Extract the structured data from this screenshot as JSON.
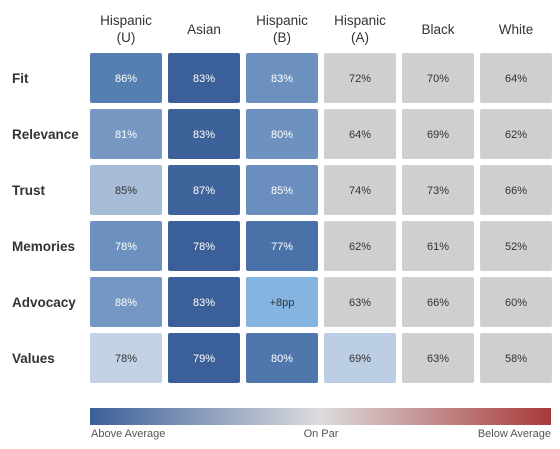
{
  "chart_data": {
    "type": "heatmap",
    "columns": [
      [
        "Hispanic",
        "(U)"
      ],
      [
        "Asian"
      ],
      [
        "Hispanic",
        "(B)"
      ],
      [
        "Hispanic",
        "(A)"
      ],
      [
        "Black"
      ],
      [
        "White"
      ]
    ],
    "rows": [
      {
        "label": "Fit",
        "cells": [
          {
            "text": "86%",
            "color": "#567fb1",
            "text_color": "#ffffff"
          },
          {
            "text": "83%",
            "color": "#3b5f98",
            "text_color": "#ffffff"
          },
          {
            "text": "83%",
            "color": "#6c91bf",
            "text_color": "#ffffff"
          },
          {
            "text": "72%",
            "color": "#cfcfcf",
            "text_color": "#333333"
          },
          {
            "text": "70%",
            "color": "#cfcfcf",
            "text_color": "#333333"
          },
          {
            "text": "64%",
            "color": "#cfcfcf",
            "text_color": "#333333"
          }
        ]
      },
      {
        "label": "Relevance",
        "cells": [
          {
            "text": "81%",
            "color": "#7698c3",
            "text_color": "#ffffff"
          },
          {
            "text": "83%",
            "color": "#3d6199",
            "text_color": "#ffffff"
          },
          {
            "text": "80%",
            "color": "#6e92bf",
            "text_color": "#ffffff"
          },
          {
            "text": "64%",
            "color": "#cfcfcf",
            "text_color": "#333333"
          },
          {
            "text": "69%",
            "color": "#cfcfcf",
            "text_color": "#333333"
          },
          {
            "text": "62%",
            "color": "#cfcfcf",
            "text_color": "#333333"
          }
        ]
      },
      {
        "label": "Trust",
        "cells": [
          {
            "text": "85%",
            "color": "#a7bcd6",
            "text_color": "#333333"
          },
          {
            "text": "87%",
            "color": "#3f639b",
            "text_color": "#ffffff"
          },
          {
            "text": "85%",
            "color": "#6a8fbe",
            "text_color": "#ffffff"
          },
          {
            "text": "74%",
            "color": "#cfcfcf",
            "text_color": "#333333"
          },
          {
            "text": "73%",
            "color": "#cfcfcf",
            "text_color": "#333333"
          },
          {
            "text": "66%",
            "color": "#cfcfcf",
            "text_color": "#333333"
          }
        ]
      },
      {
        "label": "Memories",
        "cells": [
          {
            "text": "78%",
            "color": "#6c91bf",
            "text_color": "#ffffff"
          },
          {
            "text": "78%",
            "color": "#3b5f98",
            "text_color": "#ffffff"
          },
          {
            "text": "77%",
            "color": "#4b72a8",
            "text_color": "#ffffff"
          },
          {
            "text": "62%",
            "color": "#cfcfcf",
            "text_color": "#333333"
          },
          {
            "text": "61%",
            "color": "#cfcfcf",
            "text_color": "#333333"
          },
          {
            "text": "52%",
            "color": "#cfcfcf",
            "text_color": "#333333"
          }
        ]
      },
      {
        "label": "Advocacy",
        "cells": [
          {
            "text": "88%",
            "color": "#7597c3",
            "text_color": "#ffffff"
          },
          {
            "text": "83%",
            "color": "#3b5f98",
            "text_color": "#ffffff"
          },
          {
            "text": "+8pp",
            "color": "#84b4e0",
            "text_color": "#333333"
          },
          {
            "text": "63%",
            "color": "#cfcfcf",
            "text_color": "#333333"
          },
          {
            "text": "66%",
            "color": "#cfcfcf",
            "text_color": "#333333"
          },
          {
            "text": "60%",
            "color": "#cfcfcf",
            "text_color": "#333333"
          }
        ]
      },
      {
        "label": "Values",
        "cells": [
          {
            "text": "78%",
            "color": "#c2d1e4",
            "text_color": "#333333"
          },
          {
            "text": "79%",
            "color": "#3b5f98",
            "text_color": "#ffffff"
          },
          {
            "text": "80%",
            "color": "#5077ac",
            "text_color": "#ffffff"
          },
          {
            "text": "69%",
            "color": "#bccee4",
            "text_color": "#333333"
          },
          {
            "text": "63%",
            "color": "#cfcfcf",
            "text_color": "#333333"
          },
          {
            "text": "58%",
            "color": "#cfcfcf",
            "text_color": "#333333"
          }
        ]
      }
    ],
    "legend": {
      "gradient": [
        "#3b5f98",
        "#dcdcdc",
        "#a93a3a"
      ],
      "labels": [
        "Above Average",
        "On Par",
        "Below Average"
      ],
      "placement": "bottom"
    }
  }
}
